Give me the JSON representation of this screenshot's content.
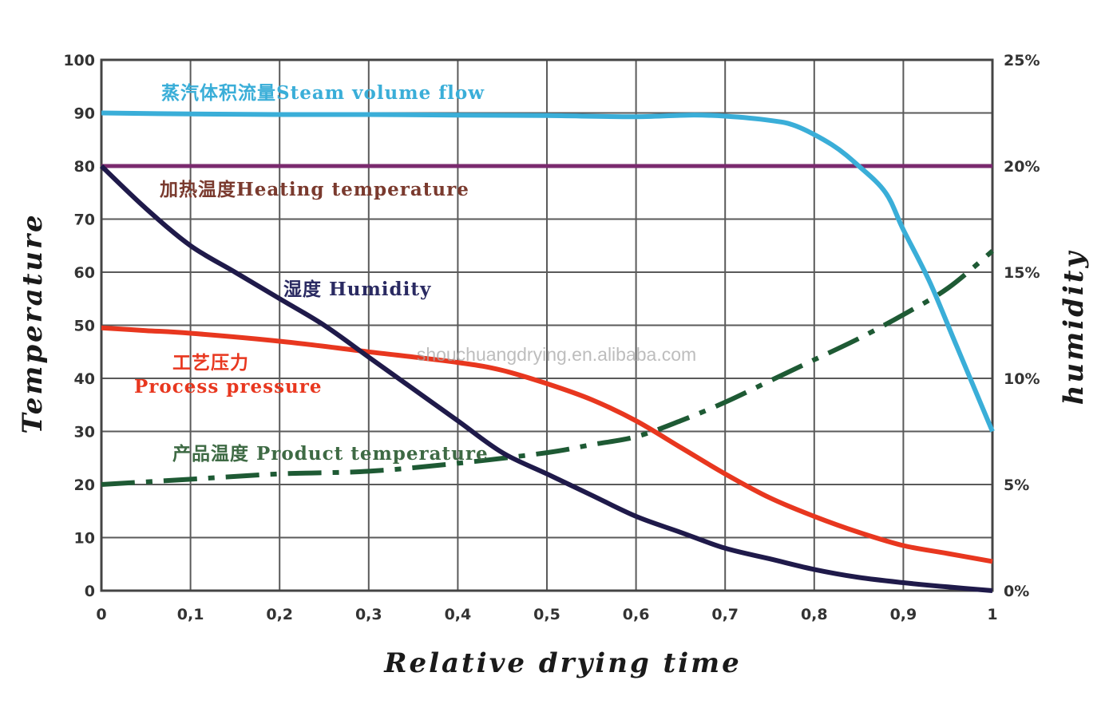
{
  "chart_data": {
    "type": "line",
    "xlabel": "Relative drying time",
    "ylabel": "Temperature",
    "y2label": "humidity",
    "xlim": [
      0,
      1
    ],
    "ylim": [
      0,
      100
    ],
    "y2lim": [
      0,
      25
    ],
    "grid": true,
    "x_ticks": [
      "0",
      "0,1",
      "0,2",
      "0,3",
      "0,4",
      "0,5",
      "0,6",
      "0,7",
      "0,8",
      "0,9",
      "1"
    ],
    "y_ticks": [
      "0",
      "10",
      "20",
      "30",
      "40",
      "50",
      "60",
      "70",
      "80",
      "90",
      "100"
    ],
    "y2_ticks": [
      "0%",
      "5%",
      "10%",
      "15%",
      "20%",
      "25%"
    ],
    "series": [
      {
        "key": "steam",
        "name": "蒸汽体积流量Steam volume flow",
        "label": "蒸汽体积流量Steam volume flow",
        "color": "#3aaed8",
        "style": "solid",
        "x": [
          0,
          0.1,
          0.2,
          0.3,
          0.4,
          0.5,
          0.6,
          0.66,
          0.7,
          0.75,
          0.78,
          0.82,
          0.85,
          0.88,
          0.9,
          0.93,
          0.96,
          1.0
        ],
        "y": [
          90,
          89.8,
          89.7,
          89.7,
          89.6,
          89.5,
          89.3,
          89.6,
          89.4,
          88.6,
          87.5,
          84,
          80,
          75,
          68,
          58,
          46,
          30
        ]
      },
      {
        "key": "heating",
        "name": "加热温度Heating temperature",
        "label": "加热温度Heating temperature",
        "color": "#7a2a6e",
        "style": "solid",
        "x": [
          0,
          1
        ],
        "y": [
          80,
          80
        ]
      },
      {
        "key": "humidity",
        "name": "湿度 Humidity",
        "label": "湿度 Humidity",
        "color": "#1f1a4a",
        "style": "solid",
        "x": [
          0,
          0.05,
          0.1,
          0.15,
          0.2,
          0.25,
          0.3,
          0.35,
          0.4,
          0.45,
          0.5,
          0.55,
          0.6,
          0.65,
          0.7,
          0.75,
          0.8,
          0.85,
          0.9,
          0.95,
          1.0
        ],
        "y": [
          80,
          72,
          65,
          60,
          55,
          50,
          44,
          38,
          32,
          26,
          22,
          18,
          14,
          11,
          8,
          6,
          4,
          2.5,
          1.5,
          0.7,
          0
        ]
      },
      {
        "key": "pressure",
        "name": "工艺压力 Process pressure",
        "label_cn": "工艺压力",
        "label_en": "Process pressure",
        "color": "#e8371f",
        "style": "solid",
        "x": [
          0,
          0.05,
          0.1,
          0.2,
          0.3,
          0.4,
          0.45,
          0.5,
          0.55,
          0.6,
          0.65,
          0.7,
          0.75,
          0.8,
          0.85,
          0.9,
          0.95,
          1.0
        ],
        "y": [
          49.5,
          49,
          48.5,
          47,
          45,
          43,
          41.5,
          39,
          36,
          32,
          27,
          22,
          17.5,
          14,
          11,
          8.5,
          7,
          5.5
        ]
      },
      {
        "key": "product",
        "name": "产品温度 Product temperature",
        "label": "产品温度 Product temperature",
        "color": "#1e5a34",
        "style": "dashdot",
        "x": [
          0,
          0.1,
          0.2,
          0.3,
          0.4,
          0.5,
          0.55,
          0.6,
          0.65,
          0.7,
          0.75,
          0.8,
          0.85,
          0.9,
          0.95,
          1.0
        ],
        "y": [
          20,
          21,
          22,
          22.5,
          24,
          26,
          27.5,
          29,
          32,
          35.5,
          39.5,
          43.5,
          47.5,
          52,
          57,
          64
        ]
      }
    ]
  },
  "watermark_text": "shouchuangdrying.en.alibaba.com"
}
